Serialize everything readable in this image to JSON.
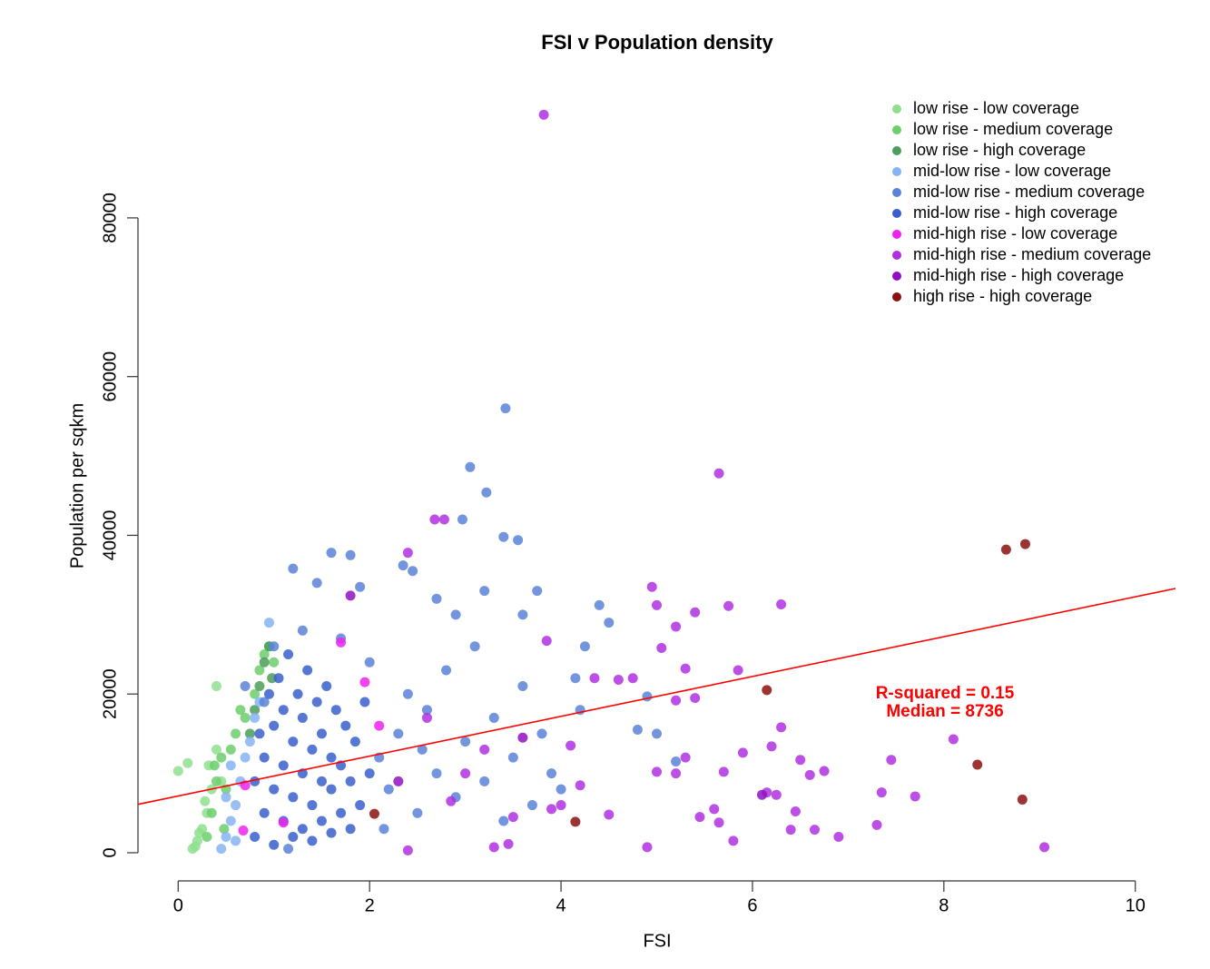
{
  "chart_data": {
    "type": "scatter",
    "title": "FSI v Population density",
    "x_label": "FSI",
    "y_label": "Population per sqkm",
    "xlim": [
      -0.42,
      10.42
    ],
    "ylim": [
      -3550,
      96700
    ],
    "xticks": [
      0,
      2,
      4,
      6,
      8,
      10
    ],
    "yticks": [
      0,
      20000,
      40000,
      60000,
      80000
    ],
    "legend": "top-right",
    "annotations": [
      "R-squared =  0.15",
      "Median =  8736"
    ],
    "regression_line": {
      "color": "#ff0000",
      "x": [
        -0.42,
        10.42
      ],
      "y": [
        6100,
        33300
      ]
    },
    "series": [
      {
        "name": "low rise - low coverage",
        "color": "#8ee08e",
        "x": [
          0.0,
          0.1,
          0.4,
          0.15,
          0.2,
          0.25,
          0.3,
          0.18,
          0.22,
          0.35,
          0.28,
          0.32,
          0.4,
          0.45
        ],
        "y": [
          10300,
          11300,
          21000,
          500,
          1500,
          3000,
          5000,
          800,
          2500,
          8000,
          6500,
          11000,
          13000,
          9000
        ]
      },
      {
        "name": "low rise - medium coverage",
        "color": "#6ccf6c",
        "x": [
          0.3,
          0.35,
          0.4,
          0.45,
          0.5,
          0.55,
          0.6,
          0.7,
          0.8,
          0.85,
          0.9,
          0.95,
          1.0,
          0.38,
          0.48,
          0.65
        ],
        "y": [
          2000,
          5000,
          9000,
          12000,
          8000,
          13000,
          15000,
          17000,
          20000,
          23000,
          25000,
          26000,
          24000,
          11000,
          3000,
          18000
        ]
      },
      {
        "name": "low rise - high coverage",
        "color": "#4a9e5a",
        "x": [
          0.75,
          0.85,
          0.9,
          0.95,
          0.98,
          0.8
        ],
        "y": [
          15000,
          21000,
          24000,
          26000,
          22000,
          18000
        ]
      },
      {
        "name": "mid-low rise - low coverage",
        "color": "#86b3f5",
        "x": [
          0.45,
          0.5,
          0.55,
          0.6,
          0.65,
          0.7,
          0.75,
          0.8,
          0.85,
          0.95,
          0.55,
          0.6,
          0.5
        ],
        "y": [
          500,
          2000,
          4000,
          6000,
          9000,
          12000,
          14000,
          17000,
          19000,
          29000,
          11000,
          1500,
          7000
        ]
      },
      {
        "name": "mid-low rise - medium coverage",
        "color": "#5a82d8",
        "x": [
          3.42,
          3.05,
          3.22,
          2.97,
          3.4,
          3.55,
          1.6,
          1.8,
          1.2,
          2.35,
          2.45,
          3.75,
          3.2,
          4.4,
          3.6,
          4.5,
          4.25,
          4.15,
          4.9,
          5.0,
          5.2,
          4.8,
          4.2,
          2.7,
          2.9,
          1.45,
          1.9,
          2.1,
          2.2,
          2.3,
          2.4,
          2.5,
          2.6,
          2.7,
          2.8,
          2.9,
          3.0,
          3.1,
          3.2,
          3.3,
          3.4,
          3.5,
          3.6,
          3.7,
          3.8,
          3.9,
          4.0,
          2.15,
          2.55,
          1.0,
          1.3,
          1.7,
          2.0,
          0.9,
          1.15,
          0.7
        ],
        "y": [
          56000,
          48600,
          45400,
          42000,
          39800,
          39400,
          37800,
          37500,
          35800,
          36200,
          35500,
          33000,
          33000,
          31200,
          30000,
          29000,
          26000,
          22000,
          19700,
          15000,
          11500,
          15500,
          18000,
          32000,
          30000,
          34000,
          33500,
          12000,
          8000,
          15000,
          20000,
          5000,
          18000,
          10000,
          23000,
          7000,
          14000,
          26000,
          9000,
          17000,
          4000,
          12000,
          21000,
          6000,
          15000,
          10000,
          8000,
          3000,
          13000,
          26000,
          28000,
          27000,
          24000,
          19000,
          500,
          21000
        ]
      },
      {
        "name": "mid-low rise - high coverage",
        "color": "#3a5fcd",
        "x": [
          0.8,
          0.8,
          0.85,
          0.9,
          0.9,
          0.95,
          1.0,
          1.0,
          1.0,
          1.05,
          1.1,
          1.1,
          1.1,
          1.15,
          1.2,
          1.2,
          1.2,
          1.25,
          1.3,
          1.3,
          1.3,
          1.35,
          1.4,
          1.4,
          1.4,
          1.45,
          1.5,
          1.5,
          1.5,
          1.55,
          1.6,
          1.6,
          1.6,
          1.65,
          1.7,
          1.7,
          1.75,
          1.8,
          1.8,
          1.85,
          1.9,
          1.95,
          2.0
        ],
        "y": [
          2000,
          9000,
          15000,
          5000,
          12000,
          20000,
          1000,
          8000,
          16000,
          22000,
          4000,
          11000,
          18000,
          25000,
          2000,
          7000,
          14000,
          20000,
          3000,
          10000,
          17000,
          23000,
          1500,
          6000,
          13000,
          19000,
          4000,
          9000,
          15000,
          21000,
          2500,
          8000,
          12000,
          18000,
          5000,
          11000,
          16000,
          3000,
          9000,
          14000,
          6000,
          19000,
          10000
        ]
      },
      {
        "name": "mid-high rise - low coverage",
        "color": "#ee22ee",
        "x": [
          0.7,
          1.1,
          0.68,
          1.7,
          2.1,
          1.95
        ],
        "y": [
          8500,
          3800,
          2800,
          26500,
          16000,
          21500
        ]
      },
      {
        "name": "mid-high rise - medium coverage",
        "color": "#b030e0",
        "x": [
          3.82,
          5.65,
          2.68,
          2.78,
          2.4,
          4.95,
          5.0,
          6.3,
          5.75,
          5.4,
          5.2,
          3.85,
          5.05,
          4.6,
          4.75,
          4.35,
          5.85,
          5.3,
          5.4,
          5.2,
          6.3,
          6.2,
          5.9,
          6.5,
          7.45,
          8.1,
          6.6,
          6.75,
          6.15,
          6.25,
          7.35,
          7.7,
          6.45,
          6.4,
          6.65,
          6.9,
          7.3,
          9.05,
          4.9,
          5.8,
          5.6,
          5.65,
          5.45,
          5.0,
          5.2,
          4.5,
          4.0,
          3.9,
          3.5,
          3.3,
          3.45,
          2.4,
          4.1,
          4.2,
          3.2,
          2.6,
          3.0,
          2.85,
          5.7,
          5.3
        ],
        "y": [
          93000,
          47800,
          42000,
          42000,
          37800,
          33500,
          31200,
          31300,
          31100,
          30300,
          28500,
          26700,
          25800,
          21800,
          22000,
          22000,
          23000,
          23200,
          19500,
          19200,
          15800,
          13400,
          12600,
          11700,
          11700,
          14300,
          9800,
          10300,
          7600,
          7300,
          7600,
          7100,
          5200,
          2900,
          2900,
          2000,
          3500,
          700,
          700,
          1500,
          5500,
          3800,
          4500,
          10200,
          10000,
          4800,
          6000,
          5500,
          4500,
          700,
          1100,
          300,
          13500,
          8500,
          13000,
          17000,
          10000,
          6500,
          10200,
          12000
        ]
      },
      {
        "name": "mid-high rise - high coverage",
        "color": "#9010c0",
        "x": [
          1.8,
          2.3,
          3.6,
          6.1
        ],
        "y": [
          32400,
          9000,
          14500,
          7300
        ]
      },
      {
        "name": "high rise - high coverage",
        "color": "#8b1010",
        "x": [
          8.65,
          8.85,
          6.15,
          8.35,
          8.82,
          4.15,
          2.05
        ],
        "y": [
          38200,
          38900,
          20500,
          11100,
          6700,
          3900,
          4900
        ]
      }
    ]
  }
}
